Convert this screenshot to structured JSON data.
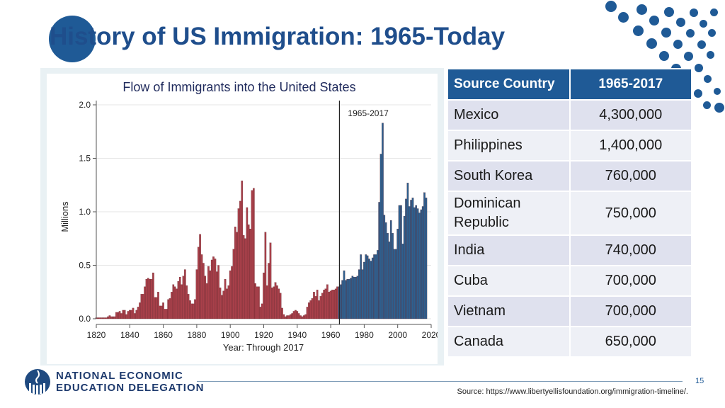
{
  "slide": {
    "title": "History of US Immigration: 1965-Today",
    "page_number": "15",
    "source": "Source: https://www.libertyellisfoundation.org/immigration-timeline/."
  },
  "org": {
    "line1": "NATIONAL ECONOMIC",
    "line2": "EDUCATION DELEGATION"
  },
  "colors": {
    "accent": "#1f5a96",
    "pre_1965_bars": "#a8404a",
    "post_1965_bars": "#2e5f8e"
  },
  "table": {
    "headers": [
      "Source Country",
      "1965-2017"
    ],
    "rows": [
      {
        "country": "Mexico",
        "value": "4,300,000"
      },
      {
        "country": "Philippines",
        "value": "1,400,000"
      },
      {
        "country": "South Korea",
        "value": "760,000"
      },
      {
        "country": "Dominican Republic",
        "value": "750,000"
      },
      {
        "country": "India",
        "value": "740,000"
      },
      {
        "country": "Cuba",
        "value": "700,000"
      },
      {
        "country": "Vietnam",
        "value": "700,000"
      },
      {
        "country": "Canada",
        "value": "650,000"
      }
    ]
  },
  "chart_data": {
    "type": "bar",
    "title": "Flow of Immigrants into the United States",
    "xlabel": "Year: Through 2017",
    "ylabel": "Millions",
    "xlim": [
      1820,
      2020
    ],
    "ylim": [
      0,
      2.0
    ],
    "x_ticks": [
      1820,
      1840,
      1860,
      1880,
      1900,
      1920,
      1940,
      1960,
      1980,
      2000,
      2020
    ],
    "y_ticks": [
      "0.0",
      "0.5",
      "1.0",
      "1.5",
      "2.0"
    ],
    "grid": true,
    "annotation": {
      "label": "1965-2017",
      "x": 1965
    },
    "series": [
      {
        "x_start": 1820,
        "x_end": 1964,
        "values": [
          0.01,
          0.01,
          0.01,
          0.01,
          0.01,
          0.01,
          0.01,
          0.02,
          0.03,
          0.02,
          0.02,
          0.02,
          0.06,
          0.06,
          0.07,
          0.05,
          0.08,
          0.08,
          0.04,
          0.07,
          0.08,
          0.08,
          0.1,
          0.05,
          0.08,
          0.11,
          0.15,
          0.23,
          0.23,
          0.3,
          0.37,
          0.38,
          0.37,
          0.37,
          0.43,
          0.2,
          0.2,
          0.25,
          0.12,
          0.12,
          0.15,
          0.09,
          0.09,
          0.18,
          0.19,
          0.25,
          0.32,
          0.3,
          0.28,
          0.35,
          0.39,
          0.32,
          0.4,
          0.46,
          0.31,
          0.23,
          0.17,
          0.14,
          0.14,
          0.18,
          0.46,
          0.67,
          0.79,
          0.6,
          0.52,
          0.4,
          0.33,
          0.49,
          0.45,
          0.55,
          0.58,
          0.56,
          0.44,
          0.5,
          0.29,
          0.22,
          0.26,
          0.37,
          0.28,
          0.31,
          0.45,
          0.49,
          0.65,
          0.86,
          0.81,
          1.03,
          1.1,
          1.29,
          0.78,
          0.75,
          1.04,
          0.88,
          0.84,
          1.2,
          1.22,
          0.33,
          0.3,
          0.3,
          0.11,
          0.14,
          0.43,
          0.81,
          0.31,
          0.52,
          0.71,
          0.29,
          0.3,
          0.34,
          0.31,
          0.28,
          0.24,
          0.1,
          0.04,
          0.02,
          0.03,
          0.03,
          0.04,
          0.05,
          0.07,
          0.08,
          0.07,
          0.05,
          0.03,
          0.02,
          0.03,
          0.04,
          0.11,
          0.15,
          0.17,
          0.19,
          0.25,
          0.21,
          0.27,
          0.17,
          0.21,
          0.24,
          0.27,
          0.28,
          0.32,
          0.25,
          0.26,
          0.27,
          0.27,
          0.28,
          0.3
        ],
        "color": "#a8404a"
      },
      {
        "x_start": 1965,
        "x_end": 2017,
        "values": [
          0.3,
          0.32,
          0.36,
          0.45,
          0.36,
          0.37,
          0.37,
          0.38,
          0.4,
          0.39,
          0.39,
          0.4,
          0.46,
          0.6,
          0.46,
          0.53,
          0.6,
          0.59,
          0.56,
          0.54,
          0.57,
          0.6,
          0.6,
          0.64,
          1.09,
          1.54,
          1.83,
          0.97,
          0.9,
          0.8,
          0.72,
          0.92,
          0.8,
          0.65,
          0.65,
          0.84,
          1.06,
          1.06,
          0.7,
          0.96,
          1.12,
          1.27,
          1.05,
          1.11,
          1.13,
          1.04,
          1.06,
          1.03,
          0.99,
          1.02,
          1.05,
          1.18,
          1.13
        ],
        "color": "#2e5f8e"
      }
    ]
  }
}
